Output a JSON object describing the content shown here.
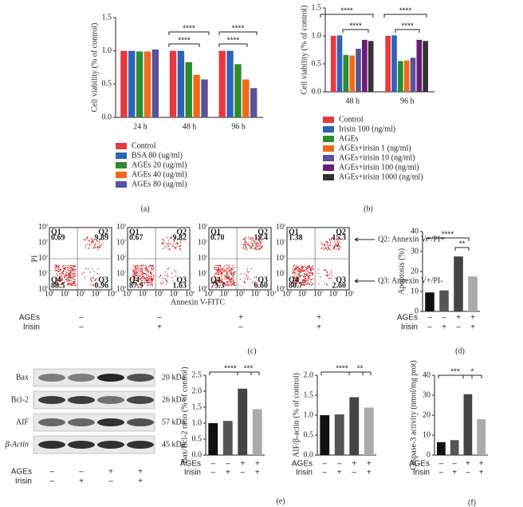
{
  "chart_data": [
    {
      "type": "bar",
      "panel": "(a)",
      "ylabel": "Cell viability (% of control)",
      "categories": [
        "24 h",
        "48 h",
        "96 h"
      ],
      "series": [
        {
          "name": "Control",
          "color": "#e8393e",
          "values": [
            1.0,
            1.0,
            1.0
          ]
        },
        {
          "name": "BSA 80 (ug/ml)",
          "color": "#2f63b8",
          "values": [
            1.0,
            1.0,
            1.0
          ]
        },
        {
          "name": "AGEs 20 (ug/ml)",
          "color": "#2e8b2e",
          "values": [
            0.99,
            0.83,
            0.8
          ]
        },
        {
          "name": "AGEs 40 (ug/ml)",
          "color": "#f06a1c",
          "values": [
            0.99,
            0.64,
            0.57
          ]
        },
        {
          "name": "AGEs 80 (ug/ml)",
          "color": "#57539a",
          "values": [
            1.02,
            0.57,
            0.44
          ]
        }
      ],
      "ylim": [
        0,
        1.5
      ],
      "yticks": [
        {
          "value": 0,
          "label": "0.0"
        },
        {
          "value": 0.5,
          "label": "0.5"
        },
        {
          "value": 1,
          "label": "1.0"
        },
        {
          "value": 1.5,
          "label": "1.5"
        }
      ],
      "annotations": [
        "****",
        "****",
        "****",
        "****"
      ]
    },
    {
      "type": "bar",
      "panel": "(b)",
      "ylabel": "Cell viability (% of control)",
      "categories": [
        "48 h",
        "96 h"
      ],
      "series": [
        {
          "name": "Control",
          "color": "#e8393e",
          "values": [
            1.0,
            1.0
          ]
        },
        {
          "name": "Irisin 100 (ng/ml)",
          "color": "#2f63b8",
          "values": [
            1.01,
            1.01
          ]
        },
        {
          "name": "AGEs",
          "color": "#2e8b2e",
          "values": [
            0.66,
            0.55
          ]
        },
        {
          "name": "AGEs+irisin 1 (ng/ml)",
          "color": "#f06a1c",
          "values": [
            0.65,
            0.56
          ]
        },
        {
          "name": "AGEs+irisin 10 (ng/ml)",
          "color": "#57539a",
          "values": [
            0.77,
            0.61
          ]
        },
        {
          "name": "AGEs+irisin 100 (ng/ml)",
          "color": "#6a1d78",
          "values": [
            0.93,
            0.93
          ]
        },
        {
          "name": "AGEs+irisin 1000 (ng/ml)",
          "color": "#333333",
          "values": [
            0.91,
            0.91
          ]
        }
      ],
      "ylim": [
        0,
        1.5
      ],
      "yticks": [
        {
          "value": 0,
          "label": "0.0"
        },
        {
          "value": 0.5,
          "label": "0.5"
        },
        {
          "value": 1,
          "label": "1.0"
        },
        {
          "value": 1.5,
          "label": "1.5"
        }
      ],
      "annotations": [
        "****",
        "****",
        "****",
        "****"
      ]
    },
    {
      "type": "bar",
      "panel": "(d)",
      "ylabel": "Apoptosis (%)",
      "values": [
        9.5,
        10.5,
        27.5,
        17.5
      ],
      "colors": [
        "#111111",
        "#555555",
        "#444444",
        "#aaaaaa"
      ],
      "condition_rows": [
        {
          "name": "AGEs",
          "labels": [
            "–",
            "–",
            "+",
            "+"
          ]
        },
        {
          "name": "Irisin",
          "labels": [
            "–",
            "+",
            "–",
            "+"
          ]
        }
      ],
      "ylim": [
        0,
        40
      ],
      "yticks": [
        0,
        10,
        20,
        30,
        40
      ],
      "annotations": [
        "****",
        "**"
      ]
    },
    {
      "type": "bar",
      "panel": "",
      "ylabel": "Bax/Bcl-2 ratio (% of control)",
      "values": [
        1.0,
        1.07,
        2.08,
        1.44
      ],
      "colors": [
        "#111111",
        "#555555",
        "#444444",
        "#aaaaaa"
      ],
      "condition_rows": [
        {
          "name": "AGEs",
          "labels": [
            "–",
            "–",
            "+",
            "+"
          ]
        },
        {
          "name": "Irisin",
          "labels": [
            "–",
            "+",
            "–",
            "+"
          ]
        }
      ],
      "ylim": [
        0,
        2.5
      ],
      "yticks": [
        {
          "value": 0,
          "label": "0.0"
        },
        {
          "value": 0.5,
          "label": "0.5"
        },
        {
          "value": 1,
          "label": "1.0"
        },
        {
          "value": 1.5,
          "label": "1.5"
        },
        {
          "value": 2,
          "label": "2.0"
        },
        {
          "value": 2.5,
          "label": "2.5"
        }
      ],
      "annotations": [
        "****",
        "***"
      ]
    },
    {
      "type": "bar",
      "panel": "",
      "ylabel": "AIF/β-actin (% of control)",
      "values": [
        1.0,
        1.02,
        1.45,
        1.19
      ],
      "colors": [
        "#111111",
        "#555555",
        "#444444",
        "#aaaaaa"
      ],
      "condition_rows": [
        {
          "name": "AGEs",
          "labels": [
            "–",
            "–",
            "+",
            "+"
          ]
        },
        {
          "name": "Irisin",
          "labels": [
            "–",
            "+",
            "–",
            "+"
          ]
        }
      ],
      "ylim": [
        0,
        2
      ],
      "yticks": [
        {
          "value": 0,
          "label": "0.0"
        },
        {
          "value": 0.5,
          "label": "0.5"
        },
        {
          "value": 1,
          "label": "1.0"
        },
        {
          "value": 1.5,
          "label": "1.5"
        },
        {
          "value": 2,
          "label": "2.0"
        }
      ],
      "annotations": [
        "****",
        "**"
      ]
    },
    {
      "type": "bar",
      "panel": "(f)",
      "ylabel": "Caspase-3 activity (nmol/mg prot)",
      "values": [
        6.5,
        7.5,
        30.5,
        18
      ],
      "colors": [
        "#111111",
        "#555555",
        "#444444",
        "#aaaaaa"
      ],
      "condition_rows": [
        {
          "name": "AGEs",
          "labels": [
            "–",
            "–",
            "+",
            "+"
          ]
        },
        {
          "name": "Irisin",
          "labels": [
            "–",
            "+",
            "–",
            "+"
          ]
        }
      ],
      "ylim": [
        0,
        40
      ],
      "yticks": [
        0,
        10,
        20,
        30,
        40
      ],
      "annotations": [
        "***",
        "*"
      ]
    }
  ],
  "flow": {
    "panel": "(c)",
    "ylabel": "PI",
    "xlabel": "Annexin V-FITC",
    "tick_base": "10",
    "tick_exponents": [
      "0",
      "1",
      "2",
      "3",
      "4"
    ],
    "plots": [
      {
        "Q1": [
          "Q1",
          "0.69"
        ],
        "Q2": [
          "Q2",
          "9.89"
        ],
        "Q3": [
          "Q3",
          "0.96"
        ],
        "Q4": [
          "Q4",
          "88.5"
        ]
      },
      {
        "Q1": [
          "Q1",
          "0.67"
        ],
        "Q2": [
          "Q2",
          "9.82"
        ],
        "Q3": [
          "Q3",
          "1.63"
        ],
        "Q4": [
          "Q4",
          "87.9"
        ]
      },
      {
        "Q1": [
          "Q1",
          "0.70"
        ],
        "Q2": [
          "Q2",
          "19.4"
        ],
        "Q3": [
          "Q3",
          "6.60"
        ],
        "Q4": [
          "Q4",
          "73.3"
        ]
      },
      {
        "Q1": [
          "Q1",
          "1.38"
        ],
        "Q2": [
          "Q2",
          "15.3"
        ],
        "Q3": [
          "Q3",
          "2.60"
        ],
        "Q4": [
          "Q4",
          "80.7"
        ]
      }
    ],
    "notes": [
      "Q2: Annexin V+/PI+",
      "Q3: Annexin V+/PI-"
    ],
    "condition_rows": [
      {
        "name": "AGEs",
        "labels": [
          "–",
          "–",
          "+",
          "+"
        ]
      },
      {
        "name": "Irisin",
        "labels": [
          "–",
          "+",
          "–",
          "+"
        ]
      }
    ]
  },
  "blot": {
    "panel": "(e)",
    "rows": [
      {
        "name": "Bax",
        "size": "20 kDa"
      },
      {
        "name": "Bcl-2",
        "size": "26 kDa"
      },
      {
        "name": "AIF",
        "size": "57 kDa"
      },
      {
        "name": "β-Actin",
        "size": "45 kDa"
      }
    ],
    "condition_rows": [
      {
        "name": "AGEs",
        "labels": [
          "–",
          "–",
          "+",
          "+"
        ]
      },
      {
        "name": "Irisin",
        "labels": [
          "–",
          "+",
          "–",
          "+"
        ]
      }
    ]
  }
}
